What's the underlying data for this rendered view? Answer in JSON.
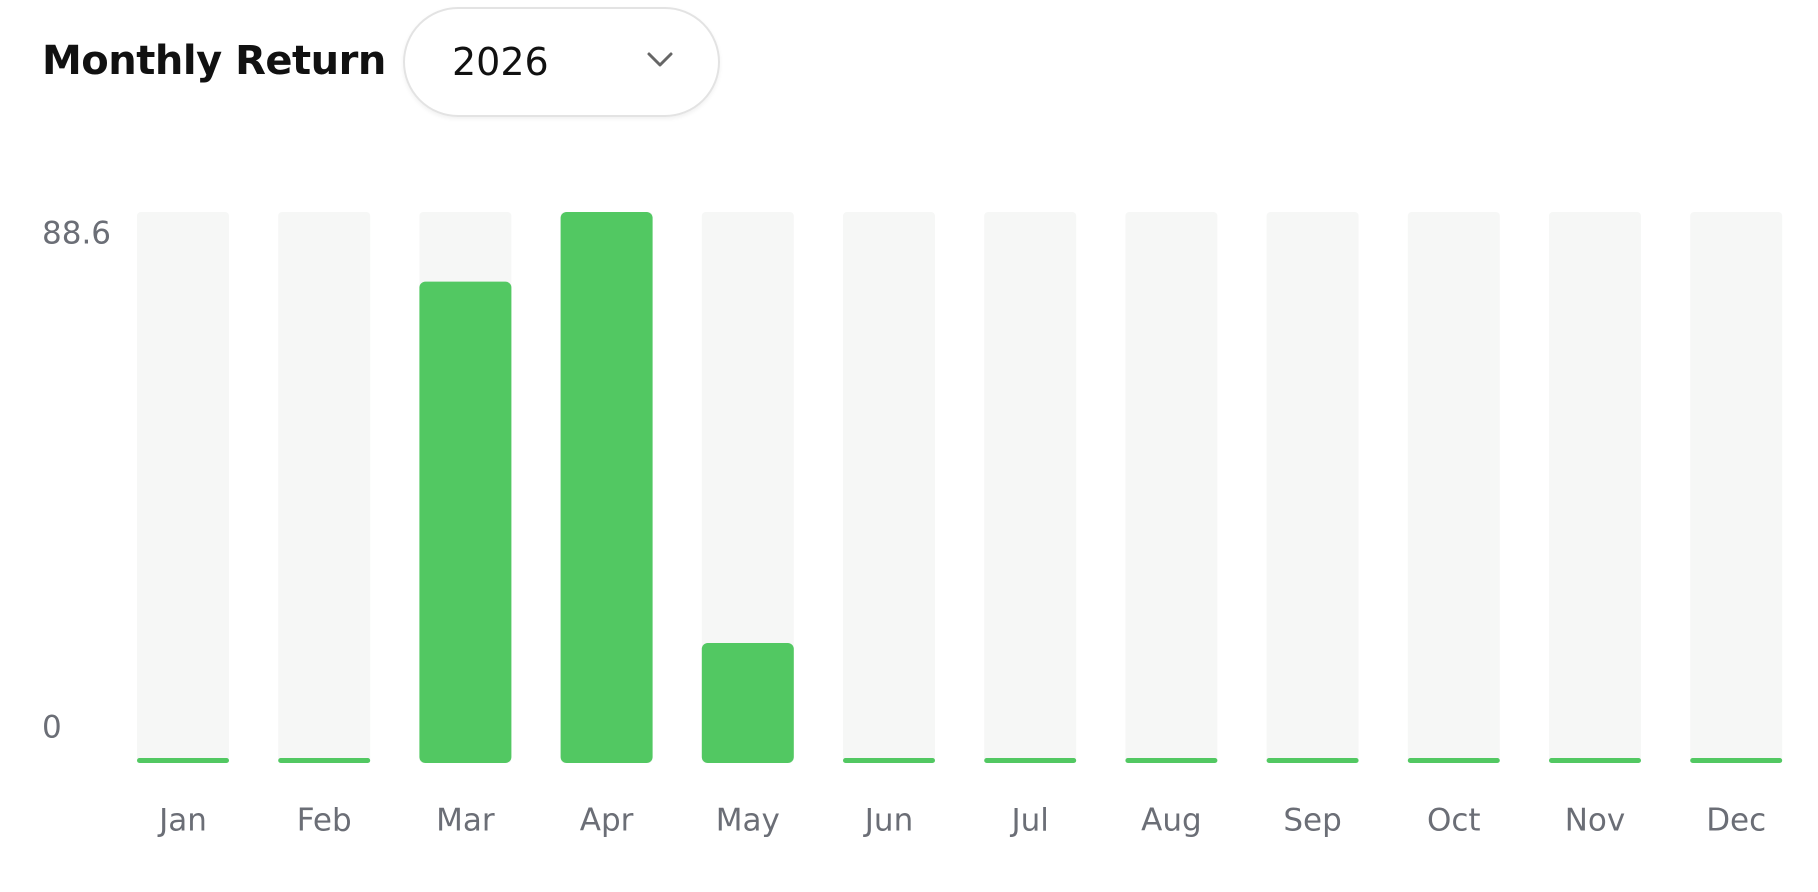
{
  "header": {
    "title": "Monthly Return",
    "year": "2026"
  },
  "chart_data": {
    "type": "bar",
    "categories": [
      "Jan",
      "Feb",
      "Mar",
      "Apr",
      "May",
      "Jun",
      "Jul",
      "Aug",
      "Sep",
      "Oct",
      "Nov",
      "Dec"
    ],
    "values": [
      0,
      0,
      77.4,
      88.6,
      19.3,
      0,
      0,
      0,
      0,
      0,
      0,
      0
    ],
    "color": "#52c862",
    "ylim": [
      0,
      88.6
    ],
    "yticks": [
      0,
      88.6
    ]
  }
}
